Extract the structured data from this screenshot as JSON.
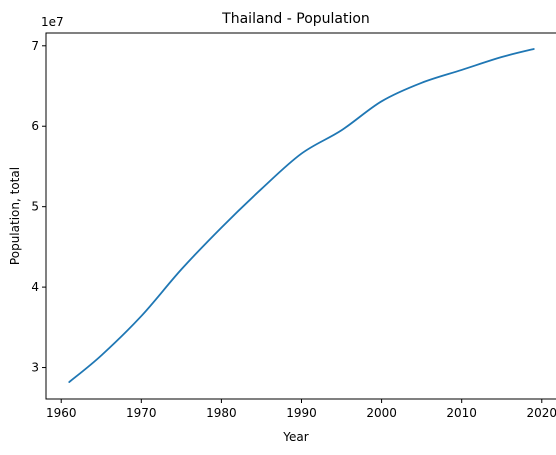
{
  "chart_data": {
    "type": "line",
    "title": "Thailand - Population",
    "xlabel": "Year",
    "ylabel": "Population, total",
    "y_offset_label": "1e7",
    "xlim": [
      1958.1,
      2021.9
    ],
    "ylim": [
      26090000,
      71590000
    ],
    "xticks": [
      1960,
      1970,
      1980,
      1990,
      2000,
      2010,
      2020
    ],
    "xtick_labels": [
      "1960",
      "1970",
      "1980",
      "1990",
      "2000",
      "2010",
      "2020"
    ],
    "yticks": [
      30000000,
      40000000,
      50000000,
      60000000,
      70000000
    ],
    "ytick_labels": [
      "3",
      "4",
      "5",
      "6",
      "7"
    ],
    "grid": false,
    "color": "#1f77b4",
    "series": [
      {
        "x": [
          1961,
          1965,
          1970,
          1975,
          1980,
          1985,
          1990,
          1995,
          2000,
          2005,
          2010,
          2015,
          2019
        ],
        "values": [
          28200000,
          31500000,
          36400000,
          42200000,
          47400000,
          52200000,
          56600000,
          59500000,
          63100000,
          65400000,
          67000000,
          68600000,
          69600000
        ]
      }
    ]
  }
}
